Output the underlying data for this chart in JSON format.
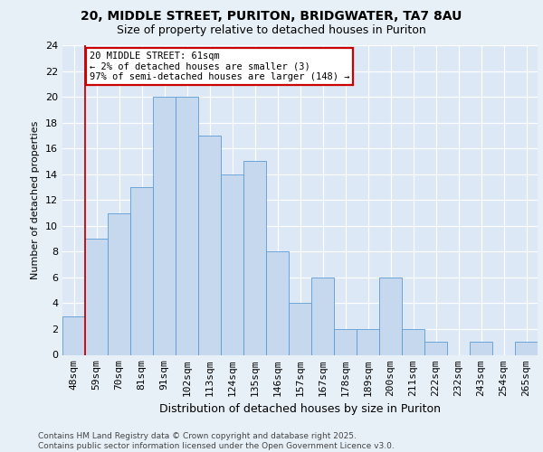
{
  "title_line1": "20, MIDDLE STREET, PURITON, BRIDGWATER, TA7 8AU",
  "title_line2": "Size of property relative to detached houses in Puriton",
  "xlabel": "Distribution of detached houses by size in Puriton",
  "ylabel": "Number of detached properties",
  "categories": [
    "48sqm",
    "59sqm",
    "70sqm",
    "81sqm",
    "91sqm",
    "102sqm",
    "113sqm",
    "124sqm",
    "135sqm",
    "146sqm",
    "157sqm",
    "167sqm",
    "178sqm",
    "189sqm",
    "200sqm",
    "211sqm",
    "222sqm",
    "232sqm",
    "243sqm",
    "254sqm",
    "265sqm"
  ],
  "values": [
    3,
    9,
    11,
    13,
    20,
    20,
    17,
    14,
    15,
    8,
    4,
    6,
    2,
    2,
    6,
    2,
    1,
    0,
    1,
    0,
    1
  ],
  "bar_color": "#c5d8ed",
  "bar_edge_color": "#5b9bd5",
  "background_color": "#e8f0f7",
  "plot_bg_color": "#dce8f5",
  "grid_color": "#ffffff",
  "annotation_text_line1": "20 MIDDLE STREET: 61sqm",
  "annotation_text_line2": "← 2% of detached houses are smaller (3)",
  "annotation_text_line3": "97% of semi-detached houses are larger (148) →",
  "annotation_box_color": "#ffffff",
  "annotation_box_edge": "#cc0000",
  "ref_line_color": "#cc0000",
  "ylim": [
    0,
    24
  ],
  "yticks": [
    0,
    2,
    4,
    6,
    8,
    10,
    12,
    14,
    16,
    18,
    20,
    22,
    24
  ],
  "title_fontsize": 10,
  "subtitle_fontsize": 9,
  "ylabel_fontsize": 8,
  "xlabel_fontsize": 9,
  "tick_fontsize": 8,
  "annot_fontsize": 7.5,
  "footer_fontsize": 6.5,
  "footer_line1": "Contains HM Land Registry data © Crown copyright and database right 2025.",
  "footer_line2": "Contains public sector information licensed under the Open Government Licence v3.0."
}
